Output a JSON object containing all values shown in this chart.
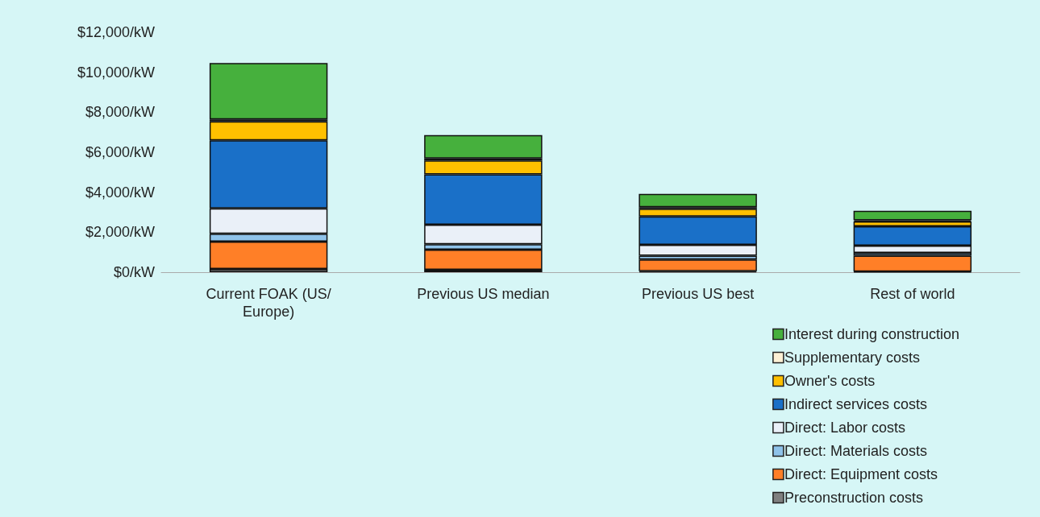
{
  "chart_data": {
    "type": "bar",
    "stacked": true,
    "categories": [
      "Current FOAK (US/Europe)",
      "Previous US median",
      "Previous US best",
      "Rest of world"
    ],
    "series": [
      {
        "name": "Preconstruction costs",
        "color": "#7f7f7f",
        "values": [
          160,
          120,
          50,
          30
        ]
      },
      {
        "name": "Direct: Equipment costs",
        "color": "#ff7f27",
        "values": [
          1370,
          1010,
          580,
          800
        ]
      },
      {
        "name": "Direct: Materials costs",
        "color": "#8fc3ea",
        "values": [
          390,
          270,
          200,
          140
        ]
      },
      {
        "name": "Direct: Labor costs",
        "color": "#eaf0f8",
        "values": [
          1270,
          980,
          540,
          360
        ]
      },
      {
        "name": "Indirect services costs",
        "color": "#1a70c8",
        "values": [
          3400,
          2510,
          1420,
          970
        ]
      },
      {
        "name": "Owner's costs",
        "color": "#ffc000",
        "values": [
          950,
          700,
          380,
          240
        ]
      },
      {
        "name": "Supplementary costs",
        "color": "#fdf0d5",
        "values": [
          100,
          100,
          80,
          60
        ]
      },
      {
        "name": "Interest during construction",
        "color": "#46b03d",
        "values": [
          2820,
          1170,
          670,
          470
        ]
      }
    ],
    "ylim": [
      0,
      12000
    ],
    "yticks": [
      {
        "value": 0,
        "label": "$0/kW"
      },
      {
        "value": 2000,
        "label": "$2,000/kW"
      },
      {
        "value": 4000,
        "label": "$4,000/kW"
      },
      {
        "value": 6000,
        "label": "$6,000/kW"
      },
      {
        "value": 8000,
        "label": "$8,000/kW"
      },
      {
        "value": 10000,
        "label": "$10,000/kW"
      },
      {
        "value": 12000,
        "label": "$12,000/kW"
      }
    ],
    "grid": false,
    "legend": "bottom right"
  }
}
